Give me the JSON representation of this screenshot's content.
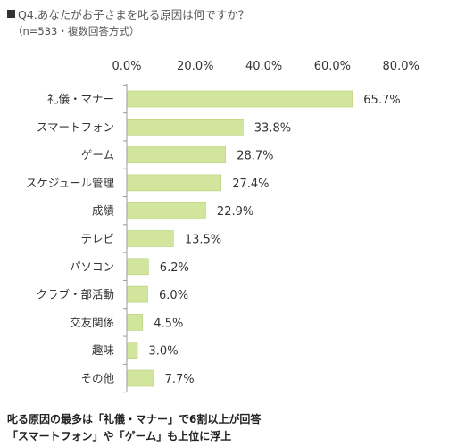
{
  "header": {
    "question": "Q4.あなたがお子さまを叱る原因は何ですか？",
    "note": "（n=533・複数回答方式）"
  },
  "summary": {
    "line1": "叱る原因の最多は「礼儀・マナー」で6割以上が回答",
    "line2": "「スマートフォン」や「ゲーム」も上位に浮上"
  },
  "chart_data": {
    "type": "bar",
    "orientation": "horizontal",
    "categories": [
      "礼儀・マナー",
      "スマートフォン",
      "ゲーム",
      "スケジュール管理",
      "成績",
      "テレビ",
      "パソコン",
      "クラブ・部活動",
      "交友関係",
      "趣味",
      "その他"
    ],
    "values": [
      65.7,
      33.8,
      28.7,
      27.4,
      22.9,
      13.5,
      6.2,
      6.0,
      4.5,
      3.0,
      7.7
    ],
    "value_labels": [
      "65.7%",
      "33.8%",
      "28.7%",
      "27.4%",
      "22.9%",
      "13.5%",
      "6.2%",
      "6.0%",
      "4.5%",
      "3.0%",
      "7.7%"
    ],
    "ticks": [
      0,
      20,
      40,
      60,
      80
    ],
    "tick_labels": [
      "0.0%",
      "20.0%",
      "40.0%",
      "60.0%",
      "80.0%"
    ],
    "xlim": [
      0,
      80
    ],
    "x_axis_position": "top",
    "grid": false,
    "legend": "none",
    "title": "",
    "xlabel": "",
    "ylabel": "",
    "colors": {
      "bar_fill": "#d2e59d",
      "bar_stroke": "#b6cf78",
      "axis": "#999999",
      "text": "#333333"
    }
  }
}
